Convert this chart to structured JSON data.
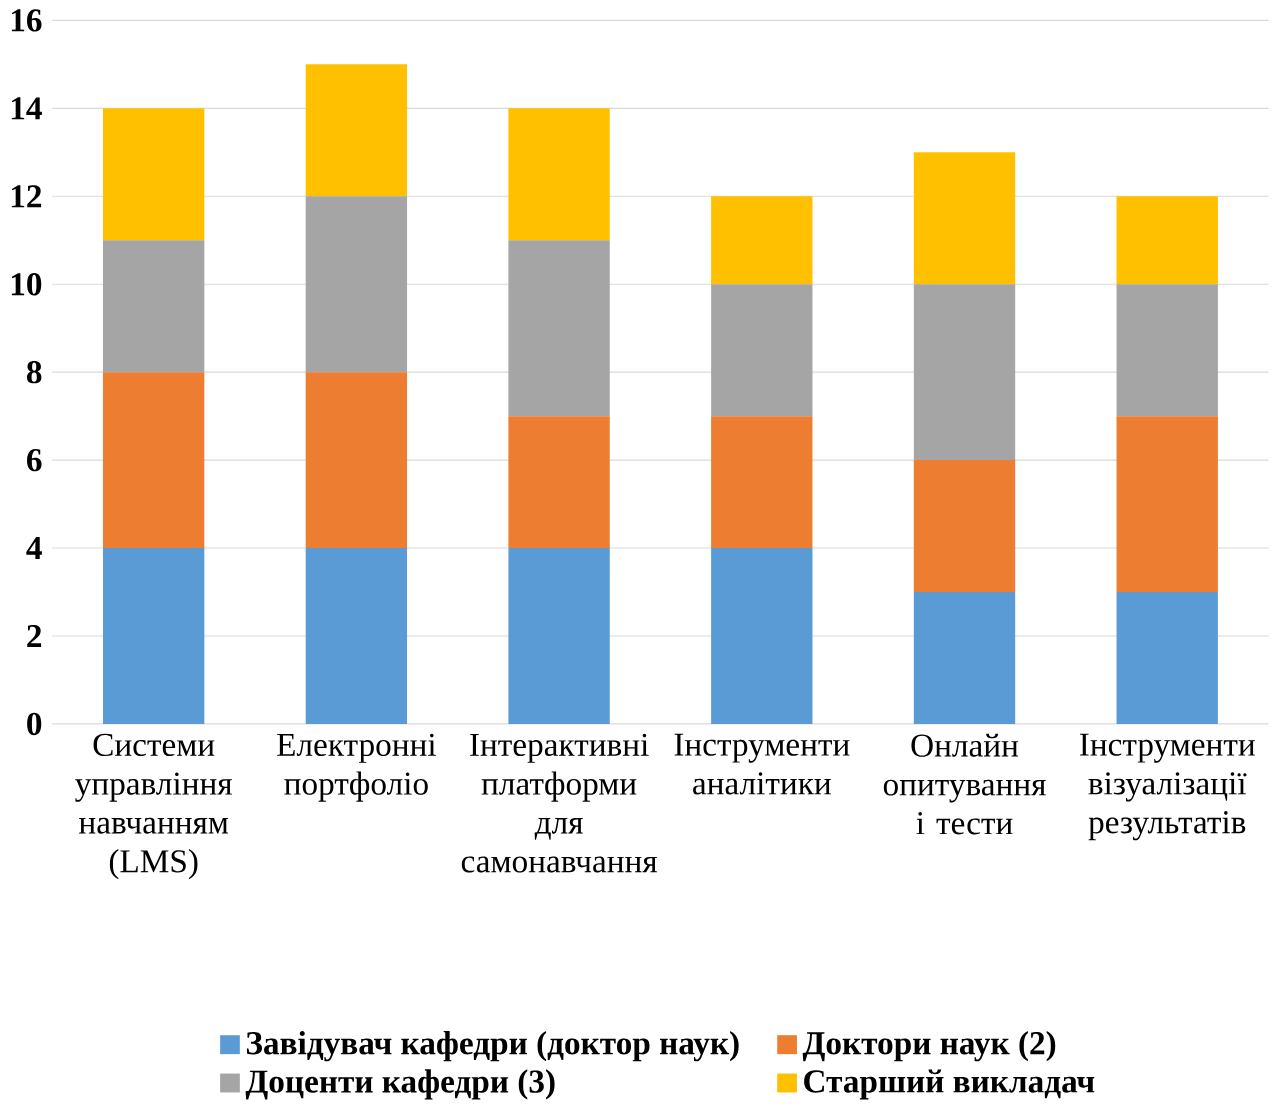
{
  "chart_data": {
    "type": "bar",
    "stacked": true,
    "categories": [
      "Системи управління навчанням (LMS)",
      "Електронні портфоліо",
      "Інтерактивні платформи для самонавчання",
      "Інструменти аналітики",
      "Онлайн опитування і тести",
      "Інструменти візуалізації результатів"
    ],
    "series": [
      {
        "name": "Завідувач кафедри (доктор наук)",
        "color": "#5b9bd5",
        "values": [
          4,
          4,
          4,
          4,
          3,
          3
        ]
      },
      {
        "name": "Доктори наук (2)",
        "color": "#ed7d31",
        "values": [
          4,
          4,
          3,
          3,
          3,
          4
        ]
      },
      {
        "name": "Доценти кафедри (3)",
        "color": "#a5a5a5",
        "values": [
          3,
          4,
          4,
          3,
          4,
          3
        ]
      },
      {
        "name": "Старший викладач",
        "color": "#ffc000",
        "values": [
          3,
          3,
          3,
          2,
          3,
          2
        ]
      }
    ],
    "ylim": [
      0,
      16
    ],
    "yticks": [
      0,
      2,
      4,
      6,
      8,
      10,
      12,
      14,
      16
    ],
    "grid": "y",
    "legend": "bottom"
  }
}
